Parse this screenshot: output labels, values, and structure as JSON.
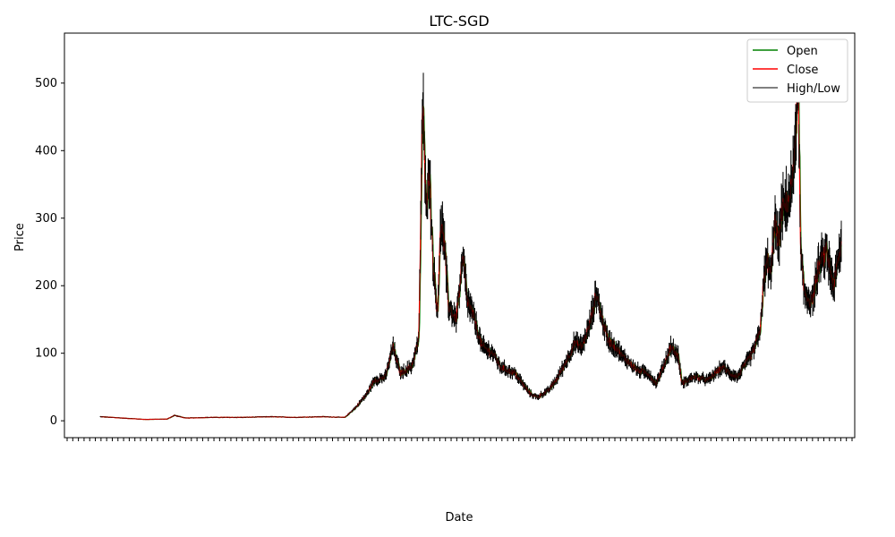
{
  "chart_data": {
    "type": "line",
    "title": "LTC-SGD",
    "xlabel": "Date",
    "ylabel": "Price",
    "ylim": [
      -25,
      574
    ],
    "yticks": [
      0,
      100,
      200,
      300,
      400,
      500
    ],
    "grid": false,
    "legend_position": "top-right",
    "series": [
      {
        "name": "Open",
        "color": "#008000"
      },
      {
        "name": "Close",
        "color": "#ff0000"
      },
      {
        "name": "High/Low",
        "color": "#000000"
      }
    ],
    "price_points": [
      [
        0.0,
        6
      ],
      [
        0.03,
        4
      ],
      [
        0.06,
        2
      ],
      [
        0.09,
        2.5
      ],
      [
        0.1,
        8
      ],
      [
        0.115,
        4
      ],
      [
        0.15,
        5
      ],
      [
        0.19,
        5
      ],
      [
        0.23,
        6
      ],
      [
        0.26,
        5
      ],
      [
        0.3,
        6
      ],
      [
        0.33,
        5
      ],
      [
        0.345,
        20
      ],
      [
        0.36,
        40
      ],
      [
        0.37,
        60
      ],
      [
        0.385,
        65
      ],
      [
        0.395,
        110
      ],
      [
        0.405,
        70
      ],
      [
        0.42,
        80
      ],
      [
        0.43,
        120
      ],
      [
        0.435,
        480
      ],
      [
        0.44,
        300
      ],
      [
        0.443,
        390
      ],
      [
        0.45,
        220
      ],
      [
        0.455,
        160
      ],
      [
        0.46,
        300
      ],
      [
        0.465,
        250
      ],
      [
        0.47,
        170
      ],
      [
        0.48,
        150
      ],
      [
        0.49,
        240
      ],
      [
        0.495,
        180
      ],
      [
        0.505,
        150
      ],
      [
        0.515,
        110
      ],
      [
        0.53,
        100
      ],
      [
        0.54,
        80
      ],
      [
        0.56,
        70
      ],
      [
        0.58,
        40
      ],
      [
        0.59,
        35
      ],
      [
        0.605,
        45
      ],
      [
        0.615,
        60
      ],
      [
        0.63,
        90
      ],
      [
        0.64,
        115
      ],
      [
        0.65,
        110
      ],
      [
        0.66,
        140
      ],
      [
        0.67,
        190
      ],
      [
        0.675,
        160
      ],
      [
        0.685,
        120
      ],
      [
        0.695,
        110
      ],
      [
        0.705,
        95
      ],
      [
        0.715,
        85
      ],
      [
        0.725,
        75
      ],
      [
        0.74,
        70
      ],
      [
        0.75,
        55
      ],
      [
        0.76,
        80
      ],
      [
        0.77,
        110
      ],
      [
        0.78,
        95
      ],
      [
        0.785,
        55
      ],
      [
        0.8,
        65
      ],
      [
        0.82,
        60
      ],
      [
        0.84,
        80
      ],
      [
        0.85,
        70
      ],
      [
        0.86,
        65
      ],
      [
        0.88,
        100
      ],
      [
        0.89,
        130
      ],
      [
        0.895,
        200
      ],
      [
        0.9,
        240
      ],
      [
        0.905,
        210
      ],
      [
        0.91,
        300
      ],
      [
        0.915,
        260
      ],
      [
        0.92,
        310
      ],
      [
        0.93,
        330
      ],
      [
        0.935,
        360
      ],
      [
        0.938,
        430
      ],
      [
        0.942,
        500
      ],
      [
        0.945,
        250
      ],
      [
        0.95,
        190
      ],
      [
        0.96,
        175
      ],
      [
        0.97,
        230
      ],
      [
        0.98,
        250
      ],
      [
        0.99,
        200
      ],
      [
        1.0,
        260
      ]
    ]
  }
}
